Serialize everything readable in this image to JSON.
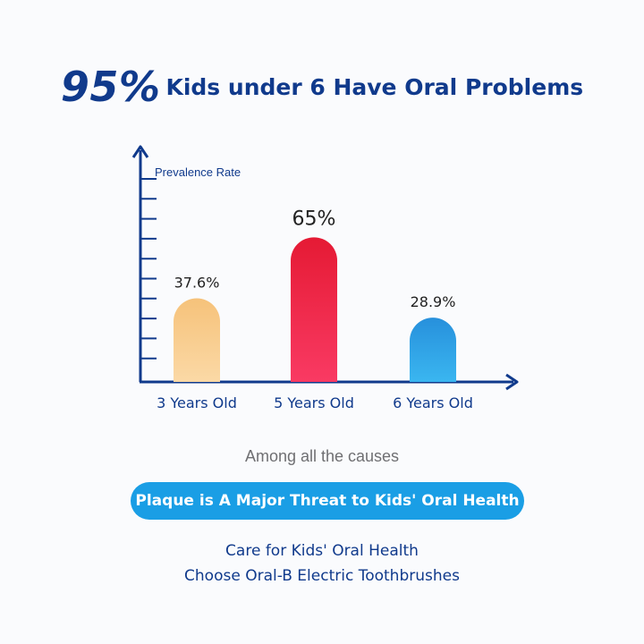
{
  "headline": {
    "big": "95%",
    "rest": "Kids under 6 Have Oral Problems"
  },
  "chart_data": {
    "type": "bar",
    "ylabel": "Prevalence Rate",
    "categories": [
      "3 Years Old",
      "5 Years Old",
      "6 Years Old"
    ],
    "values": [
      37.6,
      65,
      28.9
    ],
    "data_labels": [
      "37.6%",
      "65%",
      "28.9%"
    ],
    "ylim": [
      0,
      80
    ],
    "grid": false,
    "bar_colors": [
      [
        "#f6c27a",
        "#fbd9a6"
      ],
      [
        "#e51a34",
        "#f93a63"
      ],
      [
        "#2790dc",
        "#3ab6f0"
      ]
    ],
    "axis_color": "#103a8c"
  },
  "caption": "Among all the causes",
  "pill": {
    "text": "Plaque is A Major Threat to Kids' Oral Health",
    "color": "#1a9ee5"
  },
  "cta": {
    "line1": "Care for Kids' Oral Health",
    "line2": "Choose Oral-B Electric Toothbrushes"
  }
}
